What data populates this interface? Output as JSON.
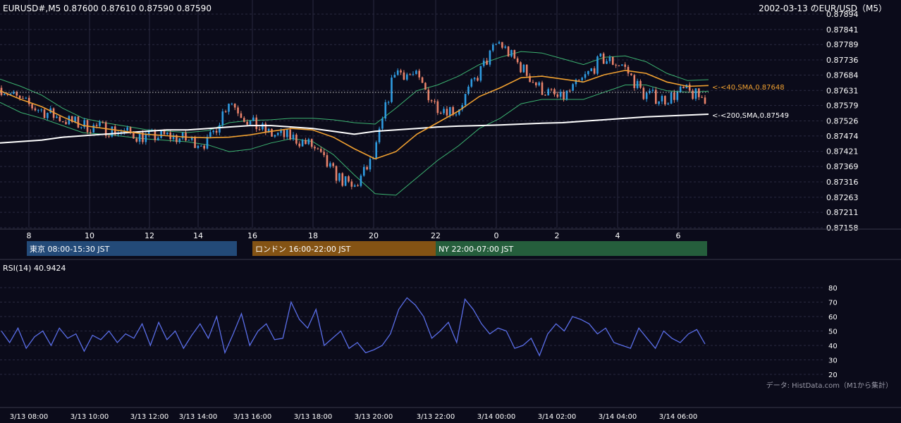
{
  "header": {
    "symbol_ohlc": "EURUSD#,M5 0.87600 0.87610 0.87590 0.87590",
    "date_pair": "2002-03-13 のEUR/USD（M5）"
  },
  "price_chart": {
    "y_ticks": [
      "0.87894",
      "0.87841",
      "0.87789",
      "0.87736",
      "0.87684",
      "0.87631",
      "0.87579",
      "0.87526",
      "0.87474",
      "0.87421",
      "0.87369",
      "0.87316",
      "0.87263",
      "0.87211",
      "0.87158"
    ],
    "x_ticks": [
      "8",
      "10",
      "12",
      "14",
      "16",
      "18",
      "20",
      "22",
      "0",
      "2",
      "4",
      "6"
    ],
    "sma40_label": "<-<40,SMA,0.87648",
    "sma200_label": "<-<200,SMA,0.87549",
    "colors": {
      "up": "#2f9be0",
      "down": "#e8826a",
      "sma40": "#f0a030",
      "sma200": "#ffffff",
      "bands": "#3cb371"
    }
  },
  "sessions": [
    {
      "label": "東京 08:00-15:30 JST",
      "color": "#234a78"
    },
    {
      "label": "ロンドン 16:00-22:00 JST",
      "color": "#845314"
    },
    {
      "label": "NY 22:00-07:00 JST",
      "color": "#255e3c"
    }
  ],
  "rsi": {
    "label": "RSI(14) 40.9424",
    "y_ticks": [
      "80",
      "70",
      "60",
      "50",
      "40",
      "30",
      "20"
    ],
    "color": "#5a6ee8"
  },
  "footer": {
    "source": "データ: HistData.com（M1から集計）",
    "time_ticks": [
      "3/13 08:00",
      "3/13 10:00",
      "3/13 12:00",
      "3/13 14:00",
      "3/13 16:00",
      "3/13 18:00",
      "3/13 20:00",
      "3/13 22:00",
      "3/14 00:00",
      "3/14 02:00",
      "3/14 04:00",
      "3/14 06:00"
    ]
  },
  "chart_data": {
    "type": "line",
    "title": "2002-03-13 のEUR/USD（M5）",
    "x": [
      "3/13 07:30",
      "3/13 08:30",
      "3/13 09:30",
      "3/13 10:30",
      "3/13 11:30",
      "3/13 12:30",
      "3/13 13:30",
      "3/13 14:30",
      "3/13 15:30",
      "3/13 16:30",
      "3/13 17:15",
      "3/13 17:45",
      "3/13 18:30",
      "3/13 19:30",
      "3/13 20:30",
      "3/13 21:00",
      "3/13 21:30",
      "3/13 22:00",
      "3/13 22:30",
      "3/13 23:00",
      "3/13 23:30",
      "3/14 00:00",
      "3/14 00:30",
      "3/14 01:00",
      "3/14 01:15",
      "3/14 01:45",
      "3/14 02:30",
      "3/14 03:00",
      "3/14 03:30",
      "3/14 04:00",
      "3/14 04:30",
      "3/14 05:00",
      "3/14 05:30",
      "3/14 06:00",
      "3/14 06:30"
    ],
    "series": [
      {
        "name": "40,SMA",
        "values": [
          0.8763,
          0.876,
          0.87575,
          0.8754,
          0.8751,
          0.875,
          0.8749,
          0.8748,
          0.87475,
          0.8747,
          0.87468,
          0.8747,
          0.87478,
          0.8749,
          0.875,
          0.87495,
          0.8747,
          0.8743,
          0.87395,
          0.8742,
          0.8748,
          0.8752,
          0.8756,
          0.8761,
          0.8764,
          0.87675,
          0.8768,
          0.8767,
          0.8766,
          0.87685,
          0.877,
          0.8769,
          0.8766,
          0.87645,
          0.87648
        ]
      },
      {
        "name": "200,SMA",
        "values": [
          0.8745,
          0.87455,
          0.8746,
          0.8747,
          0.87475,
          0.8748,
          0.87485,
          0.8749,
          0.87495,
          0.87495,
          0.875,
          0.87505,
          0.8751,
          0.8751,
          0.87505,
          0.875,
          0.8749,
          0.8748,
          0.8749,
          0.87495,
          0.875,
          0.87505,
          0.87508,
          0.8751,
          0.87512,
          0.87515,
          0.87518,
          0.8752,
          0.87525,
          0.8753,
          0.87535,
          0.8754,
          0.87543,
          0.87546,
          0.87549
        ]
      }
    ],
    "ylim": [
      0.87158,
      0.87894
    ],
    "rsi_values": [
      50,
      42,
      52,
      38,
      46,
      50,
      40,
      52,
      45,
      48,
      36,
      47,
      44,
      50,
      42,
      48,
      45,
      55,
      40,
      56,
      44,
      50,
      38,
      47,
      55,
      45,
      60,
      35,
      48,
      62,
      40,
      50,
      55,
      44,
      45,
      70,
      58,
      52,
      65,
      40,
      45,
      50,
      38,
      42,
      35,
      37,
      40,
      48,
      65,
      73,
      68,
      60,
      45,
      50,
      56,
      42,
      72,
      65,
      55,
      48,
      52,
      50,
      38,
      40,
      45,
      33,
      48,
      55,
      50,
      60,
      58,
      55,
      48,
      52,
      42,
      40,
      38,
      52,
      45,
      38,
      50,
      45,
      42,
      48,
      51,
      41
    ],
    "rsi_ylim": [
      20,
      80
    ],
    "grid": true
  }
}
